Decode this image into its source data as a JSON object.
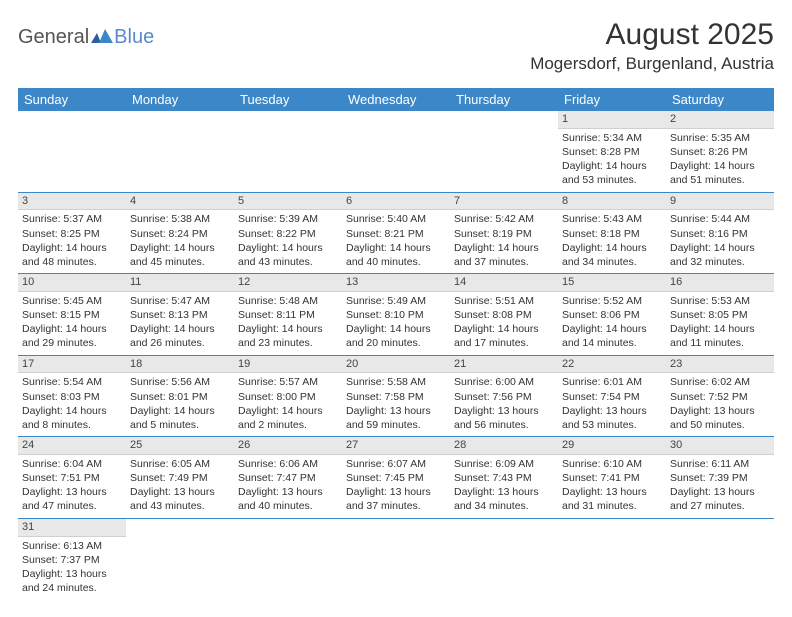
{
  "logo": {
    "text1": "General",
    "text2": "Blue"
  },
  "title": "August 2025",
  "location": "Mogersdorf, Burgenland, Austria",
  "colors": {
    "header_bg": "#3c87c7",
    "row_divider": "#3c87c7",
    "daynum_bg": "#e8e8e8"
  },
  "weekdays": [
    "Sunday",
    "Monday",
    "Tuesday",
    "Wednesday",
    "Thursday",
    "Friday",
    "Saturday"
  ],
  "weeks": [
    [
      null,
      null,
      null,
      null,
      null,
      {
        "n": "1",
        "sr": "Sunrise: 5:34 AM",
        "ss": "Sunset: 8:28 PM",
        "dl": "Daylight: 14 hours and 53 minutes."
      },
      {
        "n": "2",
        "sr": "Sunrise: 5:35 AM",
        "ss": "Sunset: 8:26 PM",
        "dl": "Daylight: 14 hours and 51 minutes."
      }
    ],
    [
      {
        "n": "3",
        "sr": "Sunrise: 5:37 AM",
        "ss": "Sunset: 8:25 PM",
        "dl": "Daylight: 14 hours and 48 minutes."
      },
      {
        "n": "4",
        "sr": "Sunrise: 5:38 AM",
        "ss": "Sunset: 8:24 PM",
        "dl": "Daylight: 14 hours and 45 minutes."
      },
      {
        "n": "5",
        "sr": "Sunrise: 5:39 AM",
        "ss": "Sunset: 8:22 PM",
        "dl": "Daylight: 14 hours and 43 minutes."
      },
      {
        "n": "6",
        "sr": "Sunrise: 5:40 AM",
        "ss": "Sunset: 8:21 PM",
        "dl": "Daylight: 14 hours and 40 minutes."
      },
      {
        "n": "7",
        "sr": "Sunrise: 5:42 AM",
        "ss": "Sunset: 8:19 PM",
        "dl": "Daylight: 14 hours and 37 minutes."
      },
      {
        "n": "8",
        "sr": "Sunrise: 5:43 AM",
        "ss": "Sunset: 8:18 PM",
        "dl": "Daylight: 14 hours and 34 minutes."
      },
      {
        "n": "9",
        "sr": "Sunrise: 5:44 AM",
        "ss": "Sunset: 8:16 PM",
        "dl": "Daylight: 14 hours and 32 minutes."
      }
    ],
    [
      {
        "n": "10",
        "sr": "Sunrise: 5:45 AM",
        "ss": "Sunset: 8:15 PM",
        "dl": "Daylight: 14 hours and 29 minutes."
      },
      {
        "n": "11",
        "sr": "Sunrise: 5:47 AM",
        "ss": "Sunset: 8:13 PM",
        "dl": "Daylight: 14 hours and 26 minutes."
      },
      {
        "n": "12",
        "sr": "Sunrise: 5:48 AM",
        "ss": "Sunset: 8:11 PM",
        "dl": "Daylight: 14 hours and 23 minutes."
      },
      {
        "n": "13",
        "sr": "Sunrise: 5:49 AM",
        "ss": "Sunset: 8:10 PM",
        "dl": "Daylight: 14 hours and 20 minutes."
      },
      {
        "n": "14",
        "sr": "Sunrise: 5:51 AM",
        "ss": "Sunset: 8:08 PM",
        "dl": "Daylight: 14 hours and 17 minutes."
      },
      {
        "n": "15",
        "sr": "Sunrise: 5:52 AM",
        "ss": "Sunset: 8:06 PM",
        "dl": "Daylight: 14 hours and 14 minutes."
      },
      {
        "n": "16",
        "sr": "Sunrise: 5:53 AM",
        "ss": "Sunset: 8:05 PM",
        "dl": "Daylight: 14 hours and 11 minutes."
      }
    ],
    [
      {
        "n": "17",
        "sr": "Sunrise: 5:54 AM",
        "ss": "Sunset: 8:03 PM",
        "dl": "Daylight: 14 hours and 8 minutes."
      },
      {
        "n": "18",
        "sr": "Sunrise: 5:56 AM",
        "ss": "Sunset: 8:01 PM",
        "dl": "Daylight: 14 hours and 5 minutes."
      },
      {
        "n": "19",
        "sr": "Sunrise: 5:57 AM",
        "ss": "Sunset: 8:00 PM",
        "dl": "Daylight: 14 hours and 2 minutes."
      },
      {
        "n": "20",
        "sr": "Sunrise: 5:58 AM",
        "ss": "Sunset: 7:58 PM",
        "dl": "Daylight: 13 hours and 59 minutes."
      },
      {
        "n": "21",
        "sr": "Sunrise: 6:00 AM",
        "ss": "Sunset: 7:56 PM",
        "dl": "Daylight: 13 hours and 56 minutes."
      },
      {
        "n": "22",
        "sr": "Sunrise: 6:01 AM",
        "ss": "Sunset: 7:54 PM",
        "dl": "Daylight: 13 hours and 53 minutes."
      },
      {
        "n": "23",
        "sr": "Sunrise: 6:02 AM",
        "ss": "Sunset: 7:52 PM",
        "dl": "Daylight: 13 hours and 50 minutes."
      }
    ],
    [
      {
        "n": "24",
        "sr": "Sunrise: 6:04 AM",
        "ss": "Sunset: 7:51 PM",
        "dl": "Daylight: 13 hours and 47 minutes."
      },
      {
        "n": "25",
        "sr": "Sunrise: 6:05 AM",
        "ss": "Sunset: 7:49 PM",
        "dl": "Daylight: 13 hours and 43 minutes."
      },
      {
        "n": "26",
        "sr": "Sunrise: 6:06 AM",
        "ss": "Sunset: 7:47 PM",
        "dl": "Daylight: 13 hours and 40 minutes."
      },
      {
        "n": "27",
        "sr": "Sunrise: 6:07 AM",
        "ss": "Sunset: 7:45 PM",
        "dl": "Daylight: 13 hours and 37 minutes."
      },
      {
        "n": "28",
        "sr": "Sunrise: 6:09 AM",
        "ss": "Sunset: 7:43 PM",
        "dl": "Daylight: 13 hours and 34 minutes."
      },
      {
        "n": "29",
        "sr": "Sunrise: 6:10 AM",
        "ss": "Sunset: 7:41 PM",
        "dl": "Daylight: 13 hours and 31 minutes."
      },
      {
        "n": "30",
        "sr": "Sunrise: 6:11 AM",
        "ss": "Sunset: 7:39 PM",
        "dl": "Daylight: 13 hours and 27 minutes."
      }
    ],
    [
      {
        "n": "31",
        "sr": "Sunrise: 6:13 AM",
        "ss": "Sunset: 7:37 PM",
        "dl": "Daylight: 13 hours and 24 minutes."
      },
      null,
      null,
      null,
      null,
      null,
      null
    ]
  ]
}
